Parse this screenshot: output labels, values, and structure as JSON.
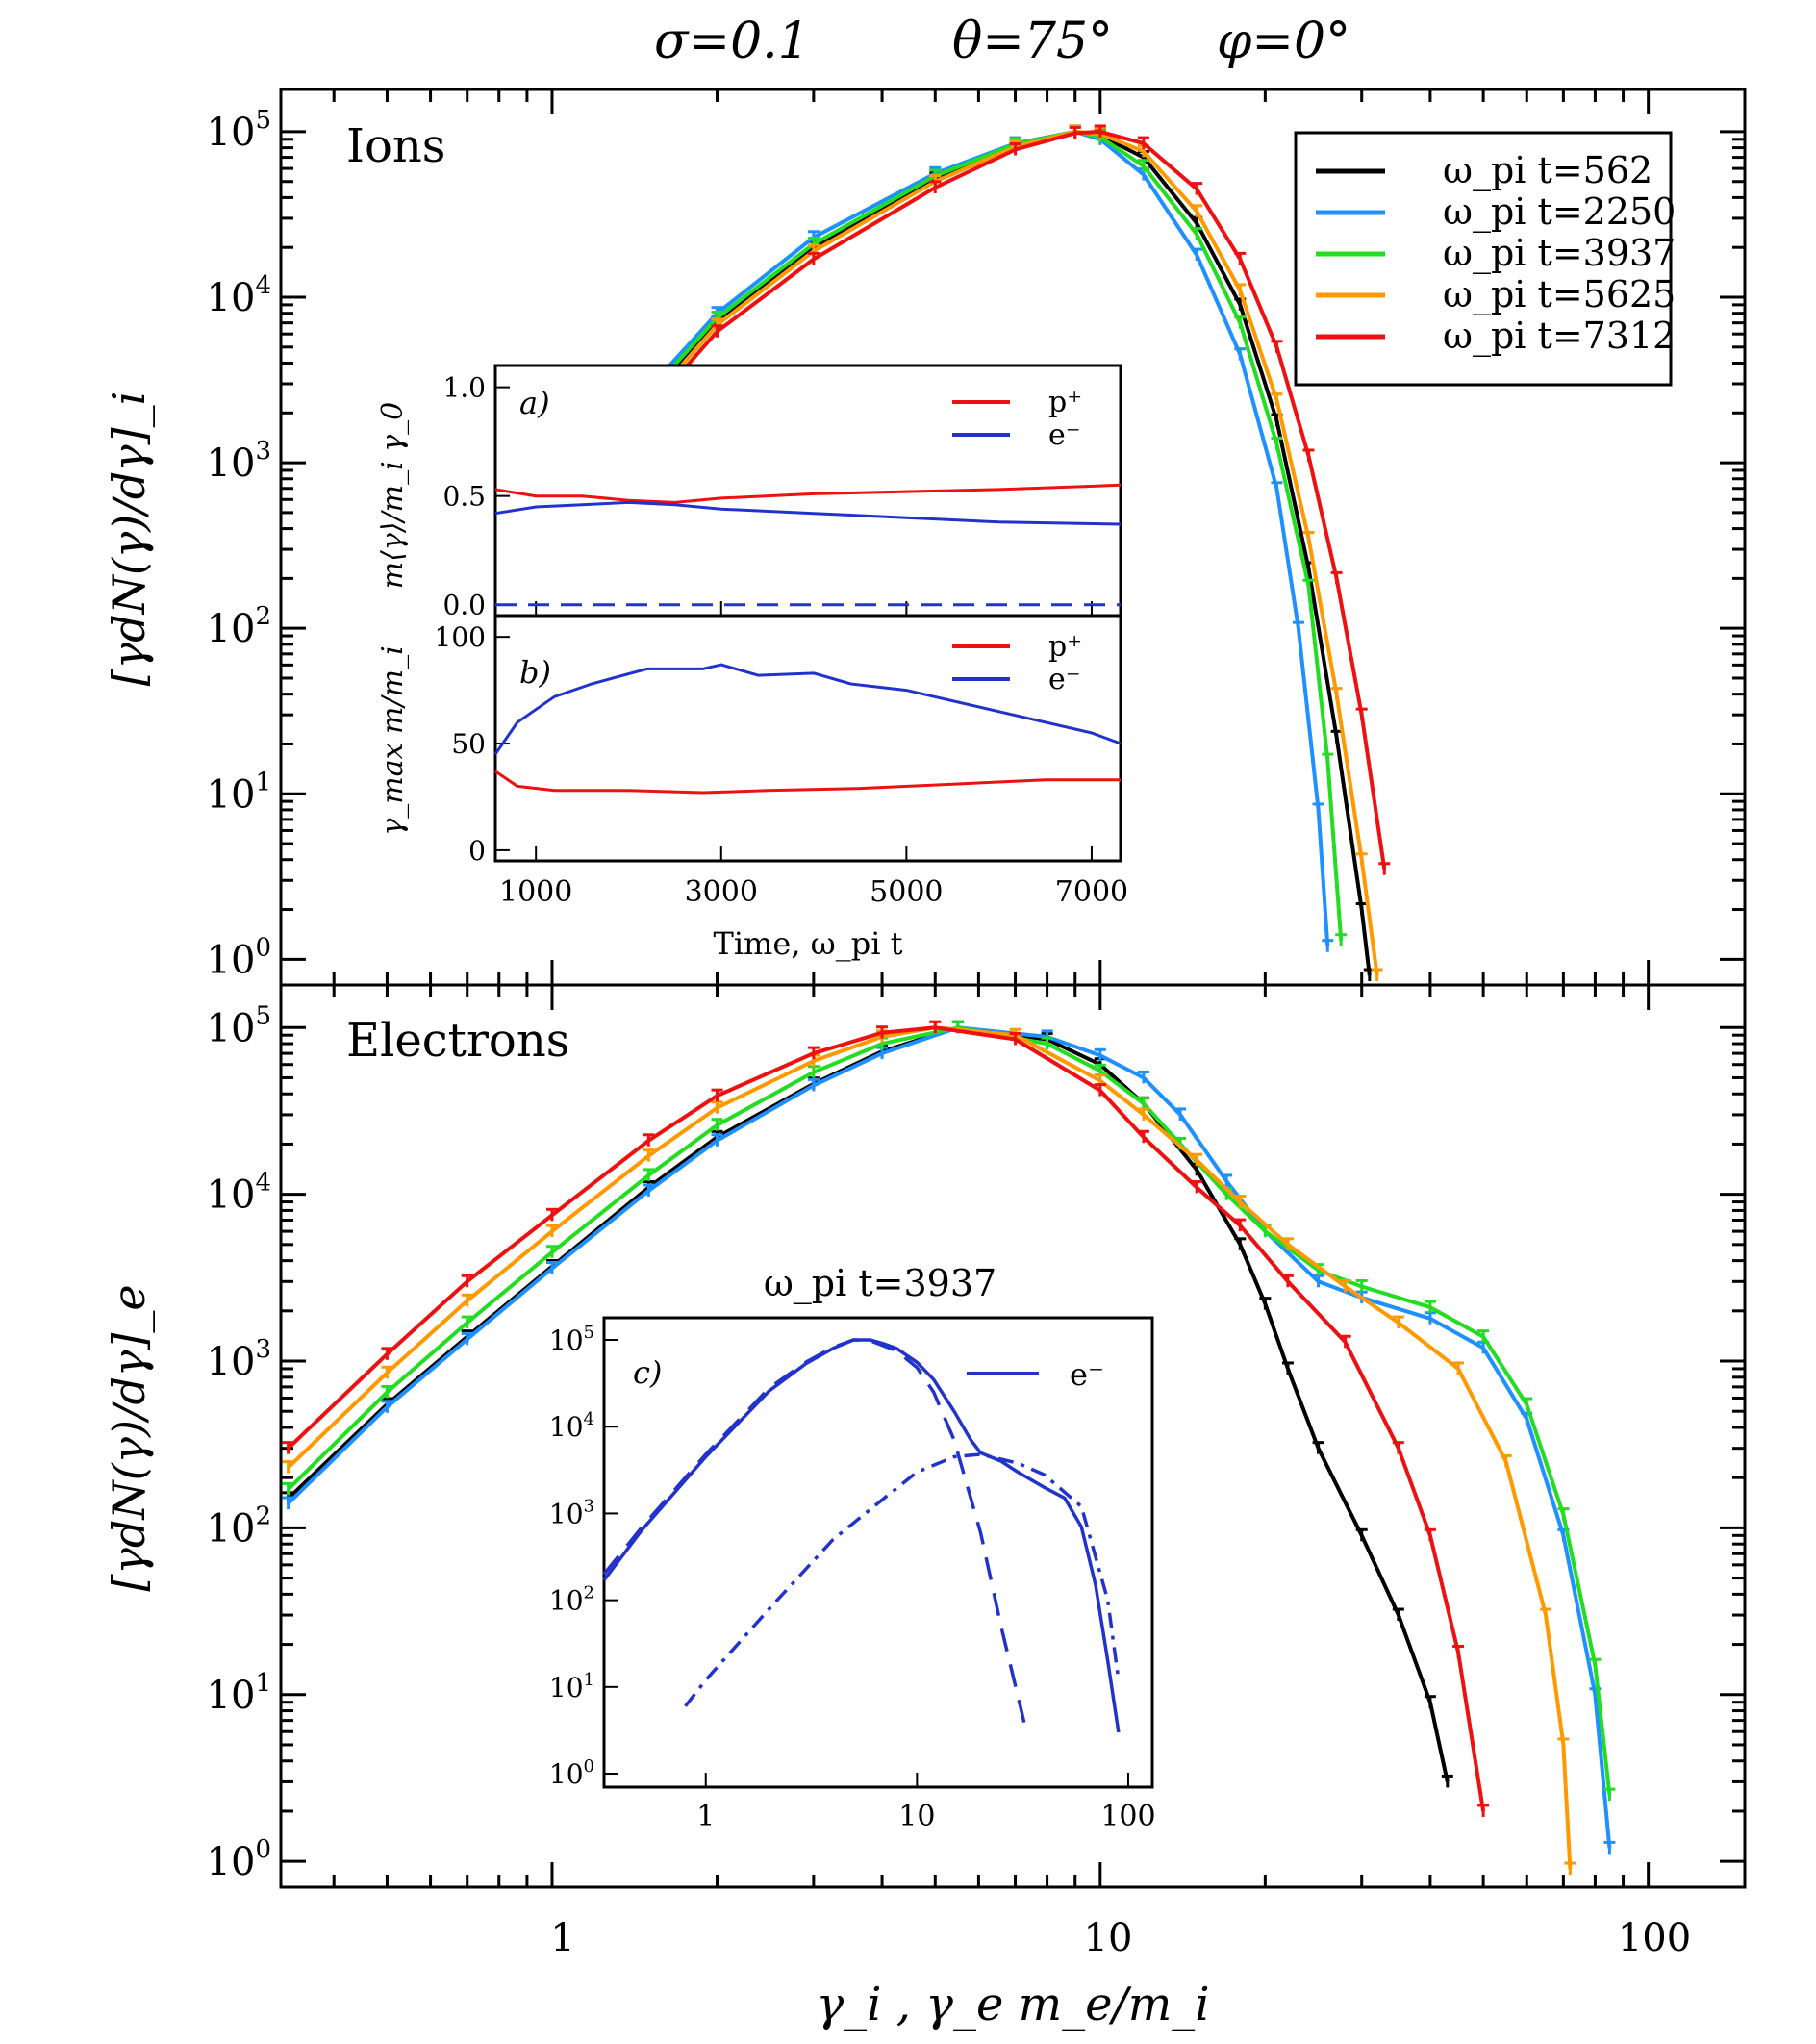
{
  "header": {
    "sigma": "σ=0.1",
    "theta": "θ=75°",
    "phi": "φ=0°"
  },
  "x_axis": {
    "label": "γ_i , γ_e m_e/m_i",
    "tick_labels": [
      "1",
      "10",
      "100"
    ]
  },
  "panels": {
    "ions": {
      "label": "Ions",
      "ylabel": "[γdN(γ)/dγ]_i"
    },
    "electrons": {
      "label": "Electrons",
      "ylabel": "[γdN(γ)/dγ]_e"
    }
  },
  "legend": {
    "entries": [
      {
        "label": "ω_pi t=562",
        "color": "#000000"
      },
      {
        "label": "ω_pi t=2250",
        "color": "#1e90ff"
      },
      {
        "label": "ω_pi t=3937",
        "color": "#22dd22"
      },
      {
        "label": "ω_pi t=5625",
        "color": "#ff9900"
      },
      {
        "label": "ω_pi t=7312",
        "color": "#ee1111"
      }
    ]
  },
  "insets": {
    "a": {
      "tag": "a)",
      "ylabel": "m⟨γ⟩/m_i γ_0",
      "legend": [
        "p⁺",
        "e⁻"
      ]
    },
    "b": {
      "tag": "b)",
      "ylabel": "γ_max m/m_i",
      "legend": [
        "p⁺",
        "e⁻"
      ],
      "xlabel": "Time, ω_pi t"
    },
    "c": {
      "tag": "c)",
      "title": "ω_pi t=3937",
      "legend": "e⁻"
    }
  },
  "chart_data": [
    {
      "type": "line",
      "title": "Ions",
      "xscale": "log",
      "yscale": "log",
      "xlim": [
        0.32,
        150
      ],
      "ylim": [
        0.7,
        180000
      ],
      "y_ticks": [
        "10^0",
        "10^1",
        "10^2",
        "10^3",
        "10^4",
        "10^5"
      ],
      "series": [
        {
          "name": "ω_pi t=562",
          "color": "#000000",
          "x": [
            1.1,
            1.5,
            2,
            3,
            5,
            7,
            9,
            10,
            12,
            15,
            18,
            21,
            24,
            27,
            30,
            31
          ],
          "y": [
            600,
            2500,
            7000,
            20000,
            52000,
            82000,
            100000,
            95000,
            70000,
            28000,
            9000,
            1800,
            230,
            22,
            2,
            0.8
          ]
        },
        {
          "name": "ω_pi t=2250",
          "color": "#1e90ff",
          "x": [
            1.1,
            1.5,
            2,
            3,
            5,
            7,
            9,
            10,
            12,
            15,
            18,
            21,
            23,
            25,
            26
          ],
          "y": [
            700,
            2800,
            8000,
            23000,
            56000,
            85000,
            100000,
            90000,
            55000,
            18000,
            4500,
            700,
            100,
            8,
            1.2
          ]
        },
        {
          "name": "ω_pi t=3937",
          "color": "#22dd22",
          "x": [
            1.1,
            1.5,
            2,
            3,
            5,
            7,
            9,
            10,
            12,
            15,
            18,
            21,
            24,
            26,
            27.5
          ],
          "y": [
            650,
            2600,
            7500,
            21000,
            54000,
            84000,
            100000,
            93000,
            62000,
            24000,
            7000,
            1300,
            180,
            16,
            1.3
          ]
        },
        {
          "name": "ω_pi t=5625",
          "color": "#ff9900",
          "x": [
            1.1,
            1.5,
            2,
            3,
            5,
            7,
            9,
            10,
            12,
            15,
            18,
            21,
            24,
            27,
            30,
            32
          ],
          "y": [
            580,
            2300,
            6800,
            19000,
            50000,
            81000,
            100000,
            97000,
            76000,
            33000,
            11000,
            2400,
            350,
            40,
            4,
            0.8
          ]
        },
        {
          "name": "ω_pi t=7312",
          "color": "#ee1111",
          "x": [
            1.1,
            1.5,
            2,
            3,
            5,
            7,
            9,
            10,
            12,
            15,
            18,
            21,
            24,
            27,
            30,
            33
          ],
          "y": [
            550,
            2100,
            6200,
            17000,
            46000,
            78000,
            98000,
            100000,
            85000,
            45000,
            17000,
            5000,
            1100,
            200,
            30,
            3.5
          ]
        }
      ]
    },
    {
      "type": "line",
      "title": "Electrons",
      "xscale": "log",
      "yscale": "log",
      "xlim": [
        0.32,
        150
      ],
      "ylim": [
        0.7,
        180000
      ],
      "y_ticks": [
        "10^0",
        "10^1",
        "10^2",
        "10^3",
        "10^4",
        "10^5"
      ],
      "series": [
        {
          "name": "ω_pi t=562",
          "color": "#000000",
          "x": [
            0.33,
            0.5,
            0.7,
            1,
            1.5,
            2,
            3,
            4,
            5.5,
            8,
            10,
            12,
            15,
            18,
            20,
            22,
            25,
            30,
            35,
            40,
            43
          ],
          "y": [
            150,
            550,
            1400,
            3700,
            11000,
            22000,
            46000,
            72000,
            100000,
            85000,
            60000,
            35000,
            14000,
            5000,
            2200,
            900,
            300,
            90,
            30,
            9,
            3
          ]
        },
        {
          "name": "ω_pi t=2250",
          "color": "#1e90ff",
          "x": [
            0.33,
            0.5,
            0.7,
            1,
            1.5,
            2,
            3,
            4,
            5.5,
            8,
            10,
            12,
            14,
            17,
            20,
            25,
            30,
            40,
            50,
            60,
            70,
            80,
            85
          ],
          "y": [
            140,
            530,
            1350,
            3600,
            10500,
            21000,
            45000,
            70000,
            100000,
            88000,
            68000,
            50000,
            30000,
            12000,
            6000,
            3000,
            2400,
            1800,
            1200,
            450,
            90,
            10,
            1.2
          ]
        },
        {
          "name": "ω_pi t=3937",
          "color": "#22dd22",
          "x": [
            0.33,
            0.5,
            0.7,
            1,
            1.5,
            2,
            3,
            4,
            5.5,
            8,
            10,
            12,
            14,
            17,
            20,
            25,
            30,
            40,
            50,
            60,
            70,
            80,
            85
          ],
          "y": [
            170,
            650,
            1700,
            4500,
            13000,
            26000,
            54000,
            80000,
            100000,
            80000,
            55000,
            35000,
            20000,
            10000,
            6000,
            3500,
            2800,
            2100,
            1400,
            550,
            120,
            15,
            2.5
          ]
        },
        {
          "name": "ω_pi t=5625",
          "color": "#ff9900",
          "x": [
            0.33,
            0.5,
            0.7,
            1,
            1.5,
            2,
            3,
            4,
            5,
            7,
            10,
            12,
            15,
            18,
            22,
            28,
            35,
            45,
            55,
            65,
            70,
            72
          ],
          "y": [
            230,
            850,
            2300,
            6000,
            17000,
            33000,
            63000,
            88000,
            100000,
            90000,
            48000,
            30000,
            16000,
            9000,
            5000,
            2800,
            1700,
            900,
            250,
            30,
            5,
            0.9
          ]
        },
        {
          "name": "ω_pi t=7312",
          "color": "#ee1111",
          "x": [
            0.33,
            0.5,
            0.7,
            1,
            1.5,
            2,
            3,
            4,
            5,
            7,
            10,
            12,
            15,
            18,
            22,
            28,
            35,
            40,
            45,
            50
          ],
          "y": [
            300,
            1100,
            3000,
            7500,
            21000,
            39000,
            70000,
            93000,
            100000,
            85000,
            42000,
            22000,
            11000,
            6500,
            3000,
            1300,
            300,
            90,
            18,
            2
          ]
        }
      ]
    },
    {
      "type": "line",
      "title": "a)",
      "xlabel": "Time, ω_pi t",
      "ylabel": "m⟨γ⟩/m_i γ_0",
      "xlim": [
        562,
        7312
      ],
      "ylim": [
        -0.05,
        1.1
      ],
      "y_ticks": [
        0.0,
        0.5,
        1.0
      ],
      "series": [
        {
          "name": "p⁺",
          "color": "#ee1111",
          "x": [
            562,
            1000,
            1500,
            2000,
            2500,
            3000,
            4000,
            5000,
            6000,
            7312
          ],
          "y": [
            0.53,
            0.5,
            0.5,
            0.48,
            0.47,
            0.49,
            0.51,
            0.52,
            0.53,
            0.55
          ]
        },
        {
          "name": "e⁻",
          "color": "#2233cc",
          "x": [
            562,
            1000,
            1500,
            2000,
            2500,
            3000,
            4000,
            5000,
            6000,
            7312
          ],
          "y": [
            0.42,
            0.45,
            0.46,
            0.47,
            0.46,
            0.44,
            0.42,
            0.4,
            0.38,
            0.37
          ]
        },
        {
          "name": "",
          "color": "#2233cc",
          "dashed": true,
          "x": [
            562,
            7312
          ],
          "y": [
            0.0,
            0.0
          ]
        }
      ]
    },
    {
      "type": "line",
      "title": "b)",
      "xlabel": "Time, ω_pi t",
      "ylabel": "γ_max m/m_i",
      "xlim": [
        562,
        7312
      ],
      "ylim": [
        -5,
        110
      ],
      "y_ticks": [
        0,
        50,
        100
      ],
      "x_ticks": [
        1000,
        3000,
        5000,
        7000
      ],
      "series": [
        {
          "name": "p⁺",
          "color": "#ee1111",
          "x": [
            562,
            800,
            1200,
            2000,
            2800,
            3500,
            4500,
            5500,
            6500,
            7312
          ],
          "y": [
            37,
            30,
            28,
            28,
            27,
            28,
            29,
            31,
            33,
            33
          ]
        },
        {
          "name": "e⁻",
          "color": "#2233cc",
          "x": [
            562,
            800,
            1200,
            1600,
            2200,
            2800,
            3000,
            3400,
            4000,
            4400,
            5000,
            6000,
            7000,
            7312
          ],
          "y": [
            45,
            60,
            72,
            78,
            85,
            85,
            87,
            82,
            83,
            78,
            75,
            65,
            55,
            50
          ]
        }
      ]
    },
    {
      "type": "line",
      "title": "ω_pi t=3937",
      "xscale": "log",
      "yscale": "log",
      "xlim": [
        0.33,
        130
      ],
      "ylim": [
        0.7,
        180000
      ],
      "x_ticks": [
        1,
        10,
        100
      ],
      "series": [
        {
          "name": "e⁻",
          "color": "#2233cc",
          "x": [
            0.33,
            0.5,
            1,
            2,
            3,
            4,
            5,
            6,
            7,
            8,
            10,
            12,
            15,
            18,
            20,
            25,
            30,
            40,
            50,
            60,
            70,
            80,
            90
          ],
          "y": [
            170,
            650,
            4500,
            26000,
            54000,
            80000,
            100000,
            100000,
            90000,
            80000,
            55000,
            35000,
            15000,
            7000,
            5000,
            4000,
            3000,
            2000,
            1500,
            700,
            150,
            20,
            3
          ]
        },
        {
          "name": "",
          "color": "#2233cc",
          "dashed": true,
          "x": [
            0.33,
            0.5,
            1,
            2,
            3,
            4,
            5,
            6,
            8,
            10,
            12,
            15,
            20,
            25,
            30,
            33
          ],
          "y": [
            200,
            700,
            4800,
            28000,
            56000,
            82000,
            100000,
            98000,
            75000,
            48000,
            25000,
            7000,
            600,
            50,
            8,
            3
          ]
        },
        {
          "name": "",
          "color": "#2233cc",
          "dashdot": true,
          "x": [
            0.8,
            1,
            2,
            4,
            7,
            10,
            15,
            20,
            30,
            40,
            60,
            80,
            90
          ],
          "y": [
            6,
            12,
            80,
            500,
            1500,
            3000,
            4500,
            4800,
            3800,
            2800,
            1200,
            100,
            12
          ]
        }
      ]
    }
  ]
}
